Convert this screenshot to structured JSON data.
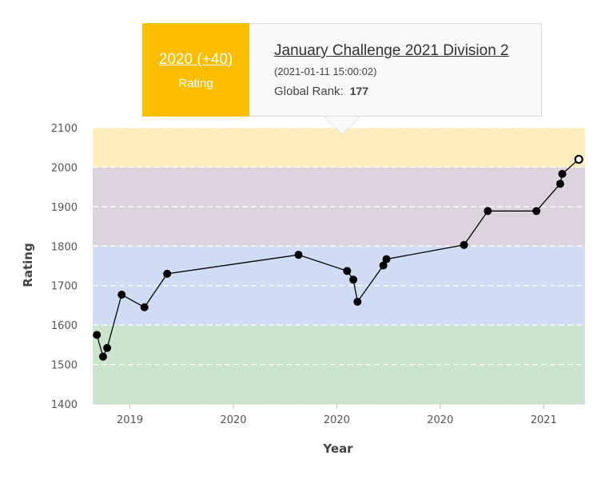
{
  "tooltip": {
    "rating_change": "2020 (+40)",
    "rating_label": "Rating",
    "contest_name": "January Challenge 2021 Division 2",
    "contest_date": "(2021-01-11 15:00:02)",
    "global_rank_label": "Global Rank:",
    "global_rank_value": "177"
  },
  "colors": {
    "band_top": "#fdedbd",
    "band_purple": "#ddd3df",
    "band_blue": "#d0dbf4",
    "band_green": "#cce3cd",
    "line": "#000000",
    "point": "#000000",
    "highlight_fill": "#ffffff",
    "tooltip_accent": "#fdbe00"
  },
  "chart_data": {
    "type": "line",
    "title": "",
    "xlabel": "Year",
    "ylabel": "Rating",
    "ylim": [
      1400,
      2100
    ],
    "yticks": [
      1400,
      1500,
      1600,
      1700,
      1800,
      1900,
      2000,
      2100
    ],
    "xticks": [
      {
        "label": "2019",
        "x": 2019.0
      },
      {
        "label": "2020",
        "x": 2020.0
      },
      {
        "label": "2020",
        "x": 2021.0
      },
      {
        "label": "2020",
        "x": 2022.0
      },
      {
        "label": "2021",
        "x": 2023.0
      }
    ],
    "xlim": [
      2018.64,
      2023.4
    ],
    "bands": [
      {
        "from": 1400,
        "to": 1600,
        "color": "#cce3cd"
      },
      {
        "from": 1600,
        "to": 1800,
        "color": "#d0dbf4"
      },
      {
        "from": 1800,
        "to": 2000,
        "color": "#ddd3df"
      },
      {
        "from": 2000,
        "to": 2100,
        "color": "#fdedbd"
      }
    ],
    "grid": true,
    "legend": "none",
    "series": [
      {
        "points": [
          {
            "x": 2018.68,
            "y": 1575
          },
          {
            "x": 2018.74,
            "y": 1520
          },
          {
            "x": 2018.78,
            "y": 1542
          },
          {
            "x": 2018.92,
            "y": 1677
          },
          {
            "x": 2019.14,
            "y": 1645
          },
          {
            "x": 2019.36,
            "y": 1730
          },
          {
            "x": 2020.63,
            "y": 1778
          },
          {
            "x": 2021.1,
            "y": 1737
          },
          {
            "x": 2021.16,
            "y": 1715
          },
          {
            "x": 2021.2,
            "y": 1659
          },
          {
            "x": 2021.45,
            "y": 1751
          },
          {
            "x": 2021.48,
            "y": 1767
          },
          {
            "x": 2022.23,
            "y": 1803
          },
          {
            "x": 2022.46,
            "y": 1889
          },
          {
            "x": 2022.93,
            "y": 1889
          },
          {
            "x": 2023.16,
            "y": 1958
          },
          {
            "x": 2023.18,
            "y": 1983
          },
          {
            "x": 2023.34,
            "y": 2020
          }
        ],
        "highlighted_index": 17
      }
    ]
  }
}
